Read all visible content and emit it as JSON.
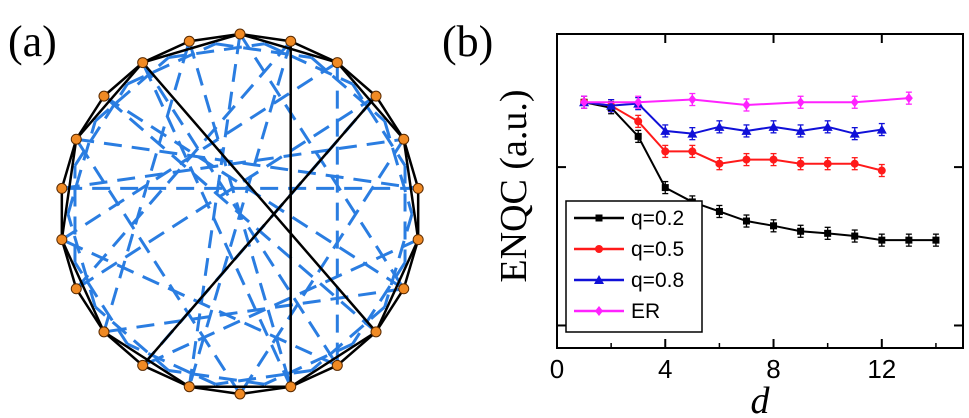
{
  "panel_a": {
    "label": "(a)"
  },
  "panel_b": {
    "label": "(b)"
  },
  "network": {
    "node_color": "#f08a24",
    "ring_edge_color": "#000000",
    "ring_edge_style": "solid",
    "shortcut_edge_color": "#2a7de1",
    "shortcut_edge_style": "dashed",
    "node_count": 22
  },
  "chart_data": {
    "type": "line",
    "title": "",
    "xlabel": "d",
    "ylabel": "ENQC (a.u.)",
    "xlim": [
      0,
      15
    ],
    "ylim": [
      0,
      4.6
    ],
    "x_ticks": [
      0,
      4,
      8,
      12
    ],
    "x_tick_labels": [
      "0",
      "4",
      "8",
      "12"
    ],
    "y_ticks": [
      0.33,
      2.65
    ],
    "y_tick_labels": [
      "",
      ""
    ],
    "grid": false,
    "legend_position": "bottom-left",
    "series": [
      {
        "name": "q=0.2",
        "color": "#000000",
        "marker": "square",
        "x": [
          1,
          2,
          3,
          4,
          5,
          6,
          7,
          8,
          9,
          10,
          11,
          12,
          13,
          14
        ],
        "y": [
          3.6,
          3.52,
          3.1,
          2.35,
          2.14,
          2.0,
          1.86,
          1.79,
          1.71,
          1.68,
          1.64,
          1.58,
          1.58,
          1.58
        ]
      },
      {
        "name": "q=0.5",
        "color": "#ff1a1a",
        "marker": "circle",
        "x": [
          1,
          2,
          3,
          4,
          5,
          6,
          7,
          8,
          9,
          10,
          11,
          12
        ],
        "y": [
          3.6,
          3.55,
          3.32,
          2.88,
          2.88,
          2.7,
          2.76,
          2.76,
          2.7,
          2.7,
          2.7,
          2.6
        ]
      },
      {
        "name": "q=0.8",
        "color": "#1010d8",
        "marker": "triangle",
        "x": [
          1,
          2,
          3,
          4,
          5,
          6,
          7,
          8,
          9,
          10,
          11,
          12
        ],
        "y": [
          3.6,
          3.55,
          3.58,
          3.18,
          3.14,
          3.24,
          3.18,
          3.24,
          3.18,
          3.24,
          3.14,
          3.2
        ]
      },
      {
        "name": "ER",
        "color": "#ff22ff",
        "marker": "diamond",
        "x": [
          1,
          3,
          5,
          7,
          9,
          11,
          13
        ],
        "y": [
          3.6,
          3.6,
          3.64,
          3.56,
          3.6,
          3.6,
          3.66
        ]
      }
    ]
  }
}
